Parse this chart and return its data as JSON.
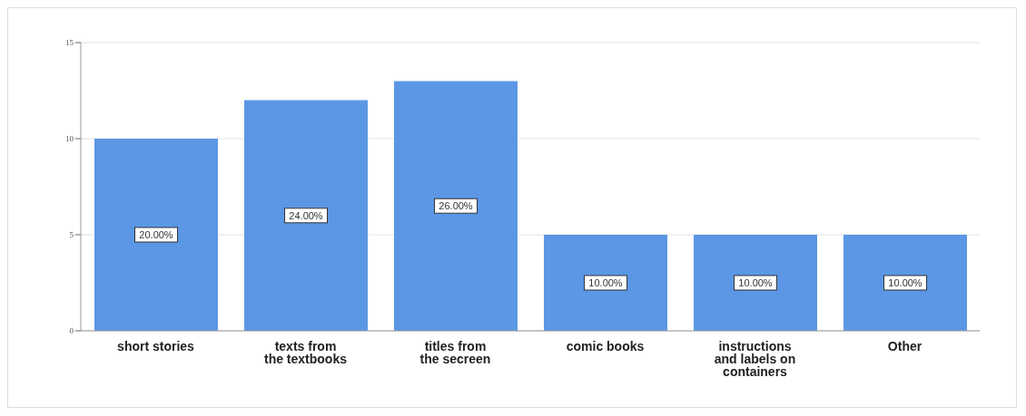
{
  "chart_data": {
    "type": "bar",
    "categories": [
      "short stories",
      "texts from the textbooks",
      "titles from the secreen",
      "comic books",
      "instructions and labels on containers",
      "Other"
    ],
    "values": [
      10,
      12,
      13,
      5,
      5,
      5
    ],
    "annotations": [
      "20.00%",
      "24.00%",
      "26.00%",
      "10.00%",
      "10.00%",
      "10.00%"
    ],
    "color": "#5b97e5",
    "ylim": [
      0,
      15
    ],
    "yticks": [
      0,
      5,
      10,
      15
    ],
    "grid": "y"
  }
}
